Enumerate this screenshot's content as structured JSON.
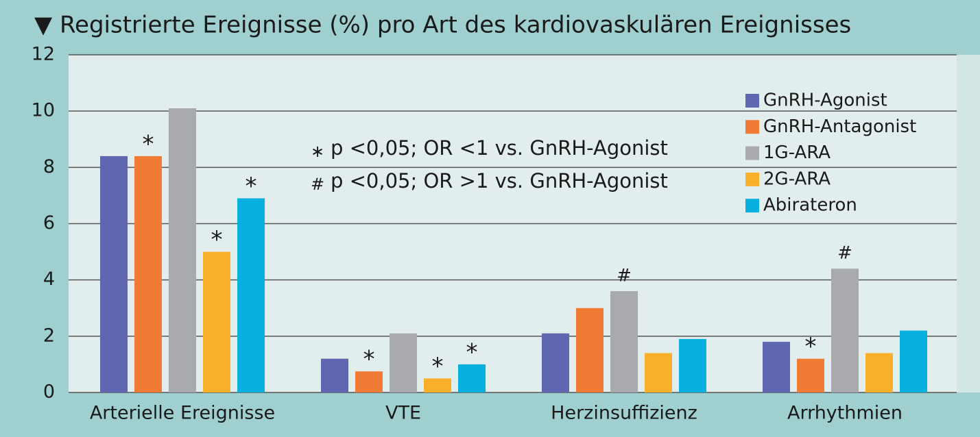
{
  "chart_data": {
    "type": "bar",
    "title": "▼ Registrierte Ereignisse (%) pro Art des kardiovaskulären Ereignisses",
    "categories": [
      "Arterielle Ereignisse",
      "VTE",
      "Herzinsuffizienz",
      "Arrhythmien"
    ],
    "series": [
      {
        "name": "GnRH-Agonist",
        "color": "#6066b0",
        "values": [
          8.4,
          1.2,
          2.1,
          1.8
        ],
        "markers": [
          null,
          null,
          null,
          null
        ]
      },
      {
        "name": "GnRH-Antagonist",
        "color": "#f07b35",
        "values": [
          8.4,
          0.75,
          3.0,
          1.2
        ],
        "markers": [
          "*",
          "*",
          null,
          "*"
        ]
      },
      {
        "name": "1G-ARA",
        "color": "#a8aaad",
        "values": [
          10.1,
          2.1,
          3.6,
          4.4
        ],
        "markers": [
          null,
          null,
          "#",
          "#"
        ]
      },
      {
        "name": "2G-ARA",
        "color": "#fbb02c",
        "values": [
          5.0,
          0.5,
          1.4,
          1.4
        ],
        "markers": [
          "*",
          "*",
          null,
          null
        ]
      },
      {
        "name": "Abirateron",
        "color": "#08b0e0",
        "values": [
          6.9,
          1.0,
          1.9,
          2.2
        ],
        "markers": [
          "*",
          "*",
          null,
          null
        ]
      }
    ],
    "notes": [
      {
        "symbol": "∗",
        "text": "p <0,05; OR <1 vs. GnRH-Agonist"
      },
      {
        "symbol": "#",
        "text": "p <0,05; OR >1 vs. GnRH-Agonist"
      }
    ],
    "ylim": [
      0,
      12
    ],
    "yticks": [
      0,
      2,
      4,
      6,
      8,
      10,
      12
    ],
    "grid": true,
    "legend": "top-right"
  }
}
